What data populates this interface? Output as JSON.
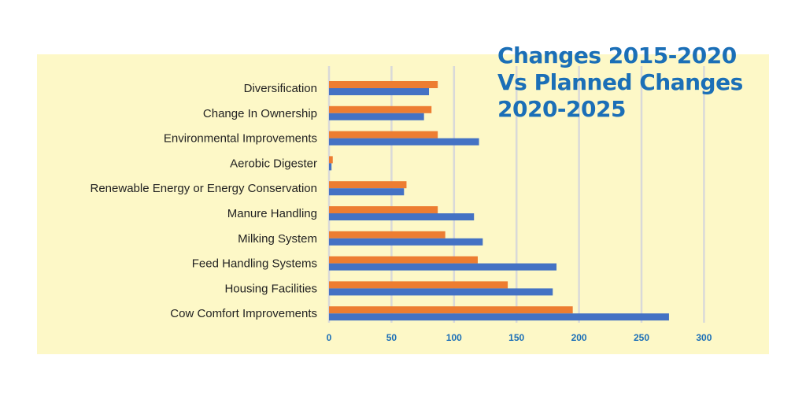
{
  "chart_data": {
    "type": "bar",
    "orientation": "horizontal",
    "title_lines": [
      "Changes 2015-2020",
      "Vs Planned Changes",
      "2020-2025"
    ],
    "categories": [
      "Diversification",
      "Change In Ownership",
      "Environmental Improvements",
      "Aerobic Digester",
      "Renewable Energy or Energy Conservation",
      "Manure Handling",
      "Milking System",
      "Feed Handling Systems",
      "Housing Facilities",
      "Cow Comfort Improvements"
    ],
    "series": [
      {
        "color": "#ed7d31",
        "values": [
          87,
          82,
          87,
          3,
          62,
          87,
          93,
          119,
          143,
          195
        ]
      },
      {
        "color": "#4472c4",
        "values": [
          80,
          76,
          120,
          2,
          60,
          116,
          123,
          182,
          179,
          272
        ]
      }
    ],
    "xticks": [
      "0",
      "50",
      "100",
      "150",
      "200",
      "250",
      "300"
    ],
    "xlim": [
      0,
      300
    ],
    "grid": true,
    "legend": "none"
  },
  "colors": {
    "panel_background": "#fdf8c7",
    "gridline": "#d9d9d9",
    "title": "#1b6fb7",
    "tick_text": "#1b6fb7"
  }
}
